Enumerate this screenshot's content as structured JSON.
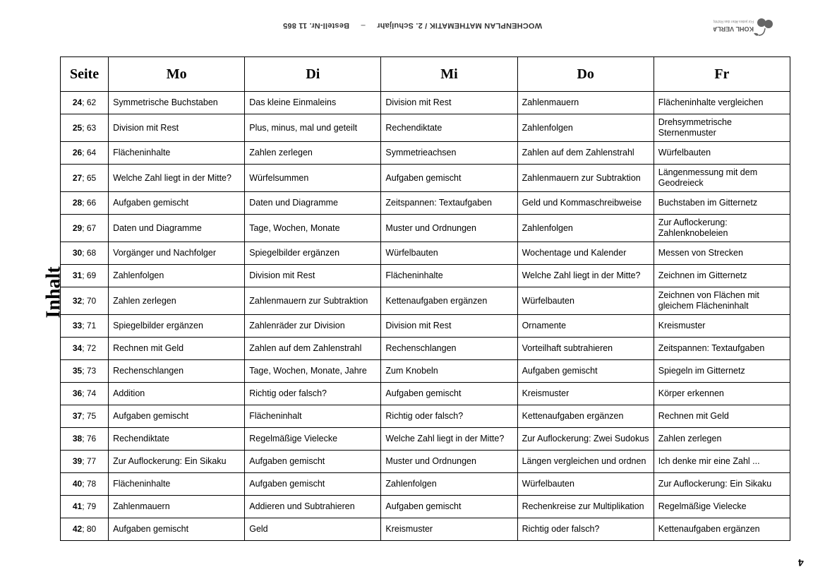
{
  "meta": {
    "publisher": "KOHL VERLAG",
    "title_line": "WOCHENPLAN MATHEMATIK / 2. Schuljahr",
    "sep": "–",
    "order": "Bestell-Nr. 11 865"
  },
  "side_title": "Inhalt",
  "page_number": "4",
  "table": {
    "columns": [
      "Seite",
      "Mo",
      "Di",
      "Mi",
      "Do",
      "Fr"
    ],
    "rows": [
      {
        "seite_bold": "24",
        "seite_rest": "; 62",
        "mo": "Symmetrische Buchstaben",
        "di": "Das kleine Einmaleins",
        "mi": "Division mit Rest",
        "do": "Zahlenmauern",
        "fr": "Flächeninhalte vergleichen"
      },
      {
        "seite_bold": "25",
        "seite_rest": "; 63",
        "mo": "Division mit Rest",
        "di": "Plus, minus, mal und geteilt",
        "mi": "Rechendiktate",
        "do": "Zahlenfolgen",
        "fr": "Drehsymmetrische Sternenmuster"
      },
      {
        "seite_bold": "26",
        "seite_rest": "; 64",
        "mo": "Flächeninhalte",
        "di": "Zahlen zerlegen",
        "mi": "Symmetrieachsen",
        "do": "Zahlen auf dem Zahlenstrahl",
        "fr": "Würfelbauten"
      },
      {
        "seite_bold": "27",
        "seite_rest": "; 65",
        "mo": "Welche Zahl liegt in der Mitte?",
        "di": "Würfelsummen",
        "mi": "Aufgaben gemischt",
        "do": "Zahlenmauern zur Subtraktion",
        "fr": "Längenmessung mit dem Geodreieck"
      },
      {
        "seite_bold": "28",
        "seite_rest": "; 66",
        "mo": "Aufgaben gemischt",
        "di": "Daten und Diagramme",
        "mi": "Zeitspannen: Textaufgaben",
        "do": "Geld und Kommaschreibweise",
        "fr": "Buchstaben im Gitternetz"
      },
      {
        "seite_bold": "29",
        "seite_rest": "; 67",
        "mo": "Daten und Diagramme",
        "di": "Tage, Wochen, Monate",
        "mi": "Muster und Ordnungen",
        "do": "Zahlenfolgen",
        "fr": "Zur Auflockerung: Zahlenknobeleien"
      },
      {
        "seite_bold": "30",
        "seite_rest": "; 68",
        "mo": "Vorgänger und Nachfolger",
        "di": "Spiegelbilder ergänzen",
        "mi": "Würfelbauten",
        "do": "Wochentage und Kalender",
        "fr": "Messen von Strecken"
      },
      {
        "seite_bold": "31",
        "seite_rest": "; 69",
        "mo": "Zahlenfolgen",
        "di": "Division mit Rest",
        "mi": "Flächeninhalte",
        "do": "Welche Zahl liegt in der Mitte?",
        "fr": "Zeichnen im Gitternetz"
      },
      {
        "seite_bold": "32",
        "seite_rest": "; 70",
        "mo": "Zahlen zerlegen",
        "di": "Zahlenmauern zur Subtraktion",
        "mi": "Kettenaufgaben ergänzen",
        "do": "Würfelbauten",
        "fr": "Zeichnen von Flächen mit gleichem Flächeninhalt"
      },
      {
        "seite_bold": "33",
        "seite_rest": "; 71",
        "mo": "Spiegelbilder ergänzen",
        "di": "Zahlenräder zur Division",
        "mi": "Division mit Rest",
        "do": "Ornamente",
        "fr": "Kreismuster"
      },
      {
        "seite_bold": "34",
        "seite_rest": "; 72",
        "mo": "Rechnen mit Geld",
        "di": "Zahlen auf dem Zahlenstrahl",
        "mi": "Rechenschlangen",
        "do": "Vorteilhaft subtrahieren",
        "fr": "Zeitspannen: Textaufgaben"
      },
      {
        "seite_bold": "35",
        "seite_rest": "; 73",
        "mo": "Rechenschlangen",
        "di": "Tage, Wochen, Monate, Jahre",
        "mi": "Zum Knobeln",
        "do": "Aufgaben gemischt",
        "fr": "Spiegeln im Gitternetz"
      },
      {
        "seite_bold": "36",
        "seite_rest": "; 74",
        "mo": "Addition",
        "di": "Richtig oder falsch?",
        "mi": "Aufgaben gemischt",
        "do": "Kreismuster",
        "fr": "Körper erkennen"
      },
      {
        "seite_bold": "37",
        "seite_rest": "; 75",
        "mo": "Aufgaben gemischt",
        "di": "Flächeninhalt",
        "mi": "Richtig oder falsch?",
        "do": "Kettenaufgaben ergänzen",
        "fr": "Rechnen mit Geld"
      },
      {
        "seite_bold": "38",
        "seite_rest": "; 76",
        "mo": "Rechendiktate",
        "di": "Regelmäßige Vielecke",
        "mi": "Welche Zahl liegt in der Mitte?",
        "do": "Zur Auflockerung: Zwei Sudokus",
        "fr": "Zahlen zerlegen"
      },
      {
        "seite_bold": "39",
        "seite_rest": "; 77",
        "mo": "Zur Auflockerung: Ein Sikaku",
        "di": "Aufgaben gemischt",
        "mi": "Muster und Ordnungen",
        "do": "Längen vergleichen und ordnen",
        "fr": "Ich denke mir eine Zahl ..."
      },
      {
        "seite_bold": "40",
        "seite_rest": "; 78",
        "mo": "Flächeninhalte",
        "di": "Aufgaben gemischt",
        "mi": "Zahlenfolgen",
        "do": "Würfelbauten",
        "fr": "Zur Auflockerung: Ein Sikaku"
      },
      {
        "seite_bold": "41",
        "seite_rest": "; 79",
        "mo": "Zahlenmauern",
        "di": "Addieren und Subtrahieren",
        "mi": "Aufgaben gemischt",
        "do": "Rechenkreise zur Multiplikation",
        "fr": "Regelmäßige Vielecke"
      },
      {
        "seite_bold": "42",
        "seite_rest": "; 80",
        "mo": "Aufgaben gemischt",
        "di": "Geld",
        "mi": "Kreismuster",
        "do": "Richtig oder falsch?",
        "fr": "Kettenaufgaben ergänzen"
      }
    ]
  }
}
